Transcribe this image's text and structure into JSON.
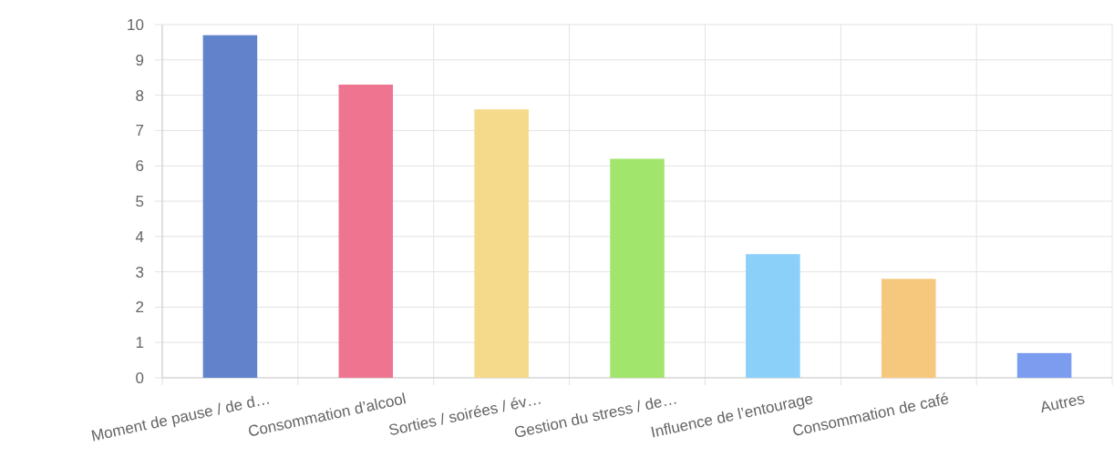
{
  "chart_data": {
    "type": "bar",
    "categories": [
      "Moment de pause / de d…",
      "Consommation d’alcool",
      "Sorties / soirées / év…",
      "Gestion du stress / de…",
      "Influence de l’entourage",
      "Consommation de café",
      "Autres"
    ],
    "values": [
      9.7,
      8.3,
      7.6,
      6.2,
      3.5,
      2.8,
      0.7
    ],
    "colors": [
      "#6083cc",
      "#ee7590",
      "#f5da8c",
      "#a2e56c",
      "#8ad0f9",
      "#f5c87e",
      "#7b9cef"
    ],
    "ylim": [
      0,
      10
    ],
    "yticks": [
      0,
      1,
      2,
      3,
      4,
      5,
      6,
      7,
      8,
      9,
      10
    ],
    "grid": true
  }
}
